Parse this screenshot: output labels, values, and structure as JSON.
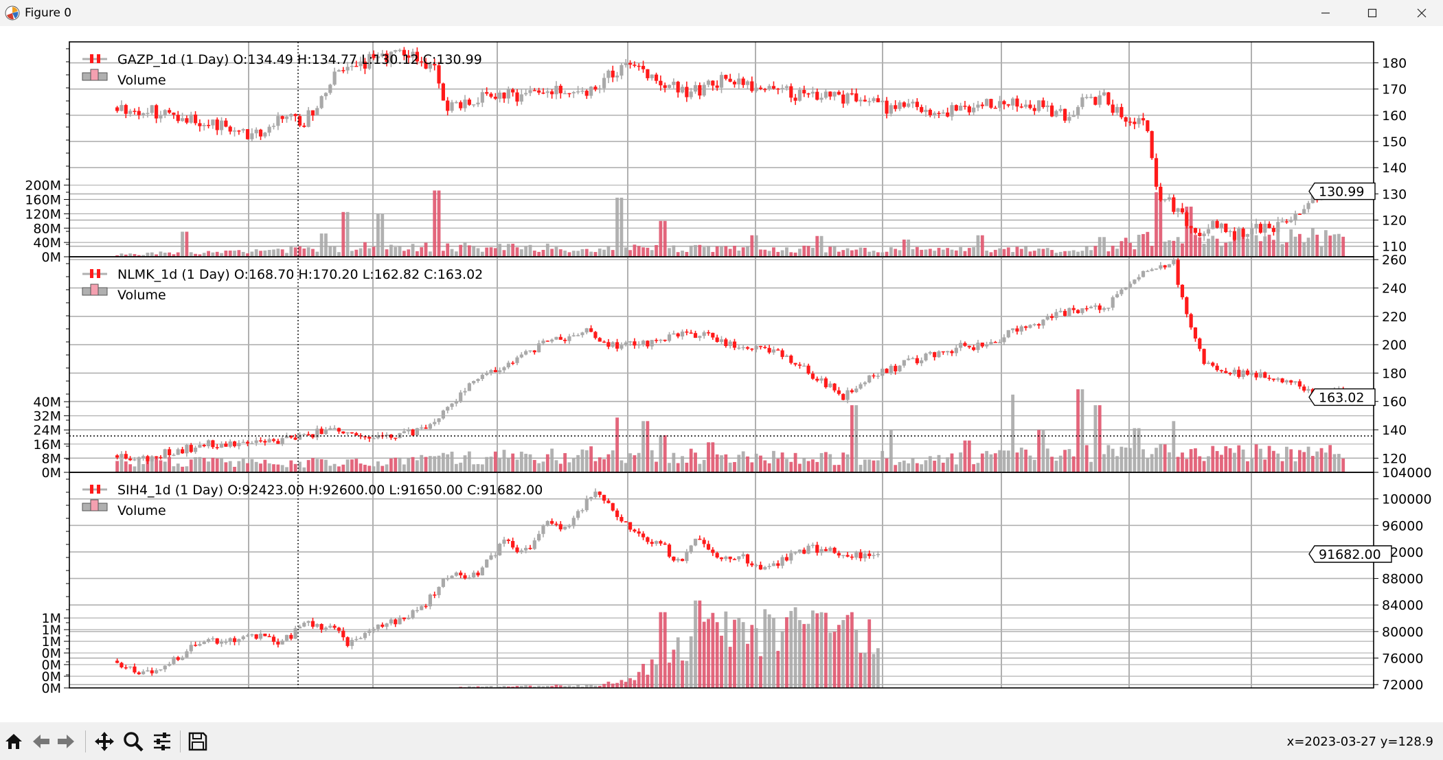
{
  "window": {
    "title": "Figure 0"
  },
  "toolbar": {
    "coords": "x=2023-03-27 y=128.9"
  },
  "chart_data": [
    {
      "type": "candlestick",
      "legend": {
        "series_label": "GAZP_1d (1 Day) O:134.49 H:134.77 L:130.12 C:130.99",
        "volume_label": "Volume"
      },
      "price_ylim": [
        106,
        188
      ],
      "price_ticks": [
        "180",
        "170",
        "160",
        "150",
        "140",
        "130",
        "120",
        "110"
      ],
      "price_tick_values": [
        180,
        170,
        160,
        150,
        140,
        130,
        120,
        110
      ],
      "volume_ticks": [
        "200M",
        "160M",
        "120M",
        "80M",
        "40M",
        "0M"
      ],
      "volume_tick_values": [
        200,
        160,
        120,
        80,
        40,
        0
      ],
      "volume_max": 600,
      "last_price_label": "130.99",
      "last_price": 130.99,
      "start": 0.035,
      "end": 0.978,
      "close_path": [
        [
          0,
          163
        ],
        [
          0.06,
          160
        ],
        [
          0.1,
          155
        ],
        [
          0.13,
          152
        ],
        [
          0.15,
          160
        ],
        [
          0.17,
          157
        ],
        [
          0.2,
          175
        ],
        [
          0.24,
          183
        ],
        [
          0.27,
          182
        ],
        [
          0.29,
          177
        ],
        [
          0.3,
          162
        ],
        [
          0.33,
          167
        ],
        [
          0.38,
          168
        ],
        [
          0.43,
          170
        ],
        [
          0.47,
          180
        ],
        [
          0.52,
          168
        ],
        [
          0.55,
          173
        ],
        [
          0.59,
          170
        ],
        [
          0.62,
          168
        ],
        [
          0.66,
          167
        ],
        [
          0.7,
          163
        ],
        [
          0.73,
          163
        ],
        [
          0.75,
          161
        ],
        [
          0.79,
          164
        ],
        [
          0.82,
          164
        ],
        [
          0.85,
          163
        ],
        [
          0.87,
          158
        ],
        [
          0.88,
          165
        ],
        [
          0.9,
          167
        ],
        [
          0.92,
          158
        ],
        [
          0.94,
          158
        ],
        [
          0.95,
          130
        ],
        [
          0.97,
          123
        ],
        [
          0.98,
          115
        ],
        [
          1.0,
          118
        ],
        [
          1.02,
          114
        ],
        [
          1.06,
          118
        ],
        [
          1.09,
          128
        ],
        [
          1.11,
          133
        ],
        [
          1.12,
          131
        ]
      ],
      "close_end": 131,
      "volatility": 2.6,
      "volume_profile": [
        [
          0,
          8
        ],
        [
          0.17,
          22
        ],
        [
          0.23,
          32
        ],
        [
          0.3,
          30
        ],
        [
          0.4,
          28
        ],
        [
          0.5,
          25
        ],
        [
          0.6,
          24
        ],
        [
          0.7,
          22
        ],
        [
          0.8,
          22
        ],
        [
          0.9,
          24
        ],
        [
          0.95,
          60
        ],
        [
          1.0,
          60
        ]
      ],
      "volume_spikes": [
        [
          0.06,
          70
        ],
        [
          0.19,
          65
        ],
        [
          0.21,
          125
        ],
        [
          0.24,
          120
        ],
        [
          0.29,
          185
        ],
        [
          0.46,
          165
        ],
        [
          0.5,
          100
        ],
        [
          0.58,
          60
        ],
        [
          0.64,
          58
        ],
        [
          0.72,
          48
        ],
        [
          0.79,
          60
        ],
        [
          0.9,
          55
        ],
        [
          0.95,
          180
        ],
        [
          0.98,
          140
        ]
      ],
      "seed": 11
    },
    {
      "type": "candlestick",
      "legend": {
        "series_label": "NLMK_1d (1 Day) O:168.70 H:170.20 L:162.82 C:163.02",
        "volume_label": "Volume"
      },
      "price_ylim": [
        110,
        262
      ],
      "price_ticks": [
        "260",
        "240",
        "220",
        "200",
        "180",
        "160",
        "140",
        "120"
      ],
      "price_tick_values": [
        260,
        240,
        220,
        200,
        180,
        160,
        140,
        120
      ],
      "volume_ticks": [
        "40M",
        "32M",
        "24M",
        "16M",
        "8M",
        "0M"
      ],
      "volume_tick_values": [
        40,
        32,
        24,
        16,
        8,
        0
      ],
      "volume_max": 122,
      "last_price_label": "163.02",
      "last_price": 163.02,
      "start": 0.035,
      "end": 0.978,
      "close_path": [
        [
          0,
          122
        ],
        [
          0.03,
          120
        ],
        [
          0.06,
          125
        ],
        [
          0.1,
          130
        ],
        [
          0.15,
          131
        ],
        [
          0.2,
          135
        ],
        [
          0.23,
          142
        ],
        [
          0.25,
          138
        ],
        [
          0.28,
          133
        ],
        [
          0.32,
          140
        ],
        [
          0.35,
          155
        ],
        [
          0.38,
          177
        ],
        [
          0.41,
          185
        ],
        [
          0.45,
          200
        ],
        [
          0.5,
          210
        ],
        [
          0.52,
          200
        ],
        [
          0.56,
          200
        ],
        [
          0.6,
          210
        ],
        [
          0.63,
          205
        ],
        [
          0.66,
          198
        ],
        [
          0.7,
          195
        ],
        [
          0.73,
          182
        ],
        [
          0.77,
          163
        ],
        [
          0.8,
          178
        ],
        [
          0.85,
          190
        ],
        [
          0.9,
          200
        ],
        [
          0.92,
          198
        ],
        [
          0.95,
          210
        ],
        [
          0.98,
          215
        ],
        [
          1.0,
          222
        ],
        [
          1.05,
          228
        ],
        [
          1.08,
          245
        ],
        [
          1.1,
          255
        ],
        [
          1.12,
          258
        ],
        [
          1.13,
          230
        ],
        [
          1.15,
          190
        ],
        [
          1.17,
          180
        ],
        [
          1.2,
          180
        ],
        [
          1.24,
          175
        ],
        [
          1.27,
          165
        ],
        [
          1.3,
          168
        ]
      ],
      "close_end": 163,
      "volatility": 3.0,
      "volume_profile": [
        [
          0,
          7
        ],
        [
          0.2,
          6
        ],
        [
          0.35,
          9
        ],
        [
          0.5,
          11
        ],
        [
          0.7,
          9
        ],
        [
          0.85,
          9
        ],
        [
          1.0,
          12
        ]
      ],
      "volume_spikes": [
        [
          0.53,
          31
        ],
        [
          0.56,
          29
        ],
        [
          0.58,
          21
        ],
        [
          0.63,
          17
        ],
        [
          0.78,
          38
        ],
        [
          0.82,
          24
        ],
        [
          0.9,
          18
        ],
        [
          0.95,
          44
        ],
        [
          0.98,
          24
        ],
        [
          1.02,
          47
        ],
        [
          1.04,
          38
        ],
        [
          1.08,
          25
        ],
        [
          1.12,
          29
        ]
      ],
      "seed": 23
    },
    {
      "type": "candlestick",
      "legend": {
        "series_label": "SIH4_1d (1 Day) O:92423.00 H:92600.00 L:91650.00 C:91682.00",
        "volume_label": "Volume"
      },
      "price_ylim": [
        71500,
        104000
      ],
      "price_ticks": [
        "104000",
        "100000",
        "96000",
        "92000",
        "88000",
        "84000",
        "80000",
        "76000",
        "72000"
      ],
      "price_tick_values": [
        104000,
        100000,
        96000,
        92000,
        88000,
        84000,
        80000,
        76000,
        72000
      ],
      "volume_ticks": [
        "1M",
        "1M",
        "1M",
        "0M",
        "0M",
        "0M",
        "0M"
      ],
      "volume_tick_values": [
        1.2,
        1.0,
        0.8,
        0.6,
        0.4,
        0.2,
        0
      ],
      "volume_max": 3.7,
      "last_price_label": "91682.00",
      "last_price": 91682,
      "start": 0.035,
      "end": 0.62,
      "close_path": [
        [
          0,
          75600
        ],
        [
          0.02,
          74000
        ],
        [
          0.05,
          74500
        ],
        [
          0.08,
          77000
        ],
        [
          0.1,
          79000
        ],
        [
          0.13,
          78500
        ],
        [
          0.16,
          79500
        ],
        [
          0.19,
          78500
        ],
        [
          0.22,
          81200
        ],
        [
          0.25,
          80500
        ],
        [
          0.27,
          78000
        ],
        [
          0.29,
          80500
        ],
        [
          0.32,
          81500
        ],
        [
          0.35,
          83000
        ],
        [
          0.38,
          88000
        ],
        [
          0.4,
          88500
        ],
        [
          0.42,
          89000
        ],
        [
          0.45,
          94000
        ],
        [
          0.47,
          91500
        ],
        [
          0.5,
          97000
        ],
        [
          0.52,
          95000
        ],
        [
          0.55,
          101000
        ],
        [
          0.57,
          99000
        ],
        [
          0.6,
          95000
        ],
        [
          0.63,
          93000
        ],
        [
          0.65,
          90500
        ],
        [
          0.67,
          94500
        ],
        [
          0.69,
          91500
        ],
        [
          0.72,
          91500
        ],
        [
          0.75,
          89500
        ],
        [
          0.78,
          91500
        ],
        [
          0.8,
          92500
        ],
        [
          0.83,
          92000
        ],
        [
          0.86,
          91500
        ],
        [
          0.88,
          91700
        ]
      ],
      "close_end": 91682,
      "volatility": 650,
      "volume_profile": [
        [
          0,
          0
        ],
        [
          0.39,
          0
        ],
        [
          0.4,
          0.02
        ],
        [
          0.55,
          0.05
        ],
        [
          0.6,
          0.15
        ],
        [
          0.62,
          0.6
        ],
        [
          0.7,
          1.1
        ],
        [
          0.9,
          1.0
        ],
        [
          1.0,
          1.1
        ]
      ],
      "volume_spikes": [
        [
          0.63,
          1.3
        ],
        [
          0.67,
          1.5
        ],
        [
          0.72,
          1.2
        ],
        [
          0.76,
          1.2
        ],
        [
          0.8,
          1.1
        ],
        [
          0.85,
          1.3
        ],
        [
          0.92,
          1.6
        ],
        [
          1.0,
          1.3
        ]
      ],
      "seed": 37
    }
  ]
}
